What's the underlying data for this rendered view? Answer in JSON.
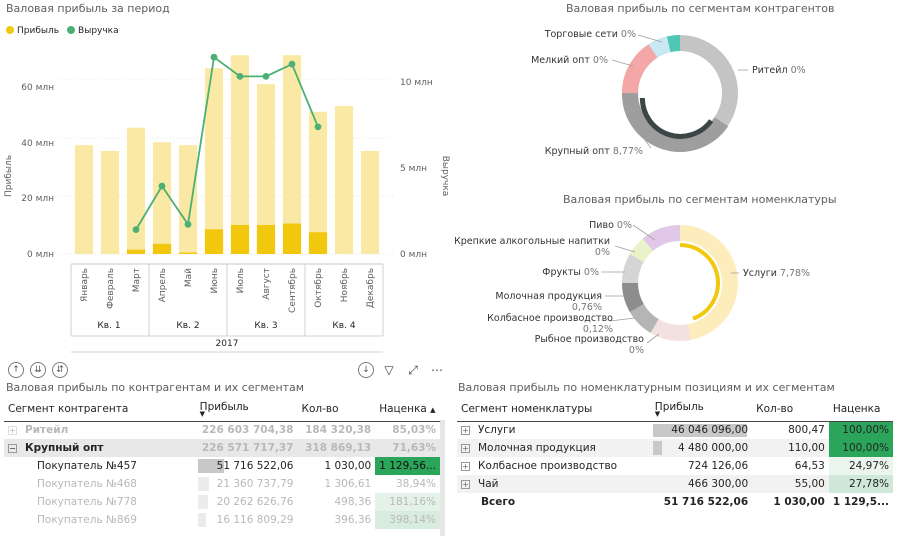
{
  "combo_chart": {
    "title": "Валовая прибыль за период",
    "legend": [
      {
        "label": "Прибыль",
        "color": "#f2c80f"
      },
      {
        "label": "Выручка",
        "color": "#4caf73"
      }
    ],
    "y_left_label": "Прибыль",
    "y_right_label": "Выручка",
    "y_left_ticks": [
      "0 млн",
      "20 млн",
      "40 млн",
      "60 млн"
    ],
    "y_right_ticks": [
      "0 млн",
      "5 млн",
      "10 млн"
    ],
    "year": "2017",
    "quarters": [
      "Кв. 1",
      "Кв. 2",
      "Кв. 3",
      "Кв. 4"
    ]
  },
  "donut1": {
    "title": "Валовая прибыль по сегментам контрагентов",
    "labels": [
      {
        "text": "Торговые сети",
        "pct": "0%"
      },
      {
        "text": "Мелкий опт",
        "pct": "0%"
      },
      {
        "text": "Ритейл",
        "pct": "0%"
      },
      {
        "text": "Крупный опт",
        "pct": "8,77%"
      }
    ]
  },
  "donut2": {
    "title": "Валовая прибыль по сегментам номенклатуры",
    "labels": [
      {
        "text": "Пиво",
        "pct": "0%"
      },
      {
        "text": "Крепкие алкогольные напитки",
        "pct": "0%"
      },
      {
        "text": "Фрукты",
        "pct": "0%"
      },
      {
        "text": "Молочная продукция",
        "pct": "0,76%"
      },
      {
        "text": "Колбасное производство",
        "pct": "0,12%"
      },
      {
        "text": "Рыбное производство",
        "pct": "0%"
      },
      {
        "text": "Услуги",
        "pct": "7,78%"
      }
    ]
  },
  "table1": {
    "title": "Валовая прибыль по контрагентам и их сегментам",
    "headers": [
      "Сегмент контрагента",
      "Прибыль",
      "Кол-во",
      "Наценка"
    ],
    "rows": [
      {
        "name": "Ритейл",
        "profit": "226 603 704,38",
        "qty": "184 320,38",
        "markup": "85,03%"
      },
      {
        "name": "Крупный опт",
        "profit": "226 571 717,37",
        "qty": "318 869,13",
        "markup": "71,63%"
      },
      {
        "name": "Покупатель №457",
        "profit": "51 716 522,06",
        "qty": "1 030,00",
        "markup": "1 129,56..."
      },
      {
        "name": "Покупатель №468",
        "profit": "21 360 737,79",
        "qty": "1 306,61",
        "markup": "38,94%"
      },
      {
        "name": "Покупатель №778",
        "profit": "20 262 626,76",
        "qty": "498,36",
        "markup": "181,16%"
      },
      {
        "name": "Покупатель №869",
        "profit": "16 116 809,29",
        "qty": "396,36",
        "markup": "398,14%"
      }
    ]
  },
  "table2": {
    "title": "Валовая прибыль по номенклатурным позициям и их сегментам",
    "headers": [
      "Сегмент номенклатуры",
      "Прибыль",
      "Кол-во",
      "Наценка"
    ],
    "rows": [
      {
        "name": "Услуги",
        "profit": "46 046 096,00",
        "qty": "800,47",
        "markup": "100,00%"
      },
      {
        "name": "Молочная продукция",
        "profit": "4 480 000,00",
        "qty": "110,00",
        "markup": "100,00%"
      },
      {
        "name": "Колбасное производство",
        "profit": "724 126,06",
        "qty": "64,53",
        "markup": "24,97%"
      },
      {
        "name": "Чай",
        "profit": "466 300,00",
        "qty": "55,00",
        "markup": "27,78%"
      }
    ],
    "total": {
      "name": "Всего",
      "profit": "51 716 522,06",
      "qty": "1 030,00",
      "markup": "1 129,5..."
    }
  },
  "chart_data": {
    "type": "bar",
    "title": "Валовая прибыль за период",
    "categories": [
      "Январь",
      "Февраль",
      "Март",
      "Апрель",
      "Май",
      "Июнь",
      "Июль",
      "Август",
      "Сентябрь",
      "Октябрь",
      "Ноябрь",
      "Декабрь"
    ],
    "ylabel": "Прибыль",
    "ylim": [
      0,
      72
    ],
    "y2label": "Выручка",
    "y2lim": [
      0,
      12
    ],
    "series": [
      {
        "name": "Прибыль",
        "kind": "bar",
        "values": [
          37.5,
          35.5,
          43.5,
          38.5,
          37.5,
          64,
          68.5,
          58.5,
          68.5,
          49,
          51,
          35.5
        ],
        "color": "#fae9a5"
      },
      {
        "name": "Прибыль",
        "kind": "bar-highlight",
        "values": [
          0,
          0,
          1.5,
          3.5,
          0.5,
          8.5,
          10,
          10,
          10.5,
          7.5,
          0,
          0
        ],
        "color": "#f2c80f"
      },
      {
        "name": "Выручка",
        "kind": "line",
        "values": [
          null,
          null,
          1.4,
          3.9,
          1.7,
          11.3,
          10.2,
          10.2,
          10.9,
          7.3,
          null,
          null
        ],
        "color": "#4caf73"
      }
    ]
  }
}
